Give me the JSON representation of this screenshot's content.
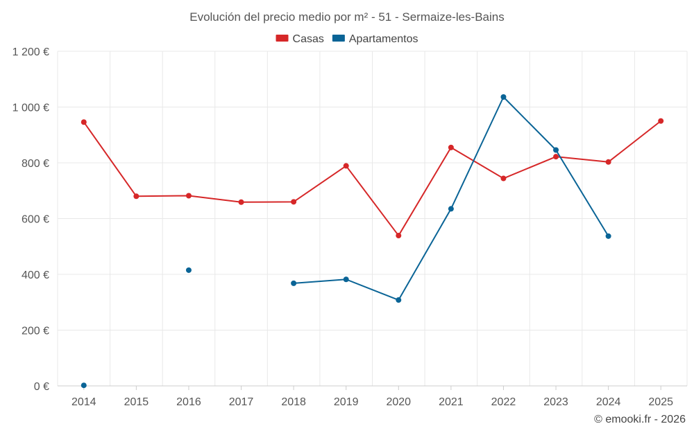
{
  "chart_data": {
    "type": "line",
    "title": "Evolución del precio medio por m² - 51 - Sermaize-les-Bains",
    "categories": [
      "2014",
      "2015",
      "2016",
      "2017",
      "2018",
      "2019",
      "2020",
      "2021",
      "2022",
      "2023",
      "2024",
      "2025"
    ],
    "series": [
      {
        "name": "Casas",
        "color": "#d62728",
        "values": [
          946,
          680,
          682,
          659,
          660,
          789,
          539,
          855,
          744,
          822,
          803,
          950
        ]
      },
      {
        "name": "Apartamentos",
        "color": "#0a6496",
        "values": [
          2,
          null,
          415,
          null,
          368,
          382,
          308,
          635,
          1036,
          846,
          537,
          null
        ]
      }
    ],
    "ylim": [
      0,
      1200
    ],
    "yticks": [
      0,
      200,
      400,
      600,
      800,
      1000,
      1200
    ],
    "ytick_labels": [
      "0 €",
      "200 €",
      "400 €",
      "600 €",
      "800 €",
      "1 000 €",
      "1 200 €"
    ],
    "xlabel": "",
    "ylabel": "",
    "grid": true,
    "legend_position": "top-center"
  },
  "credit": "© emooki.fr - 2026"
}
